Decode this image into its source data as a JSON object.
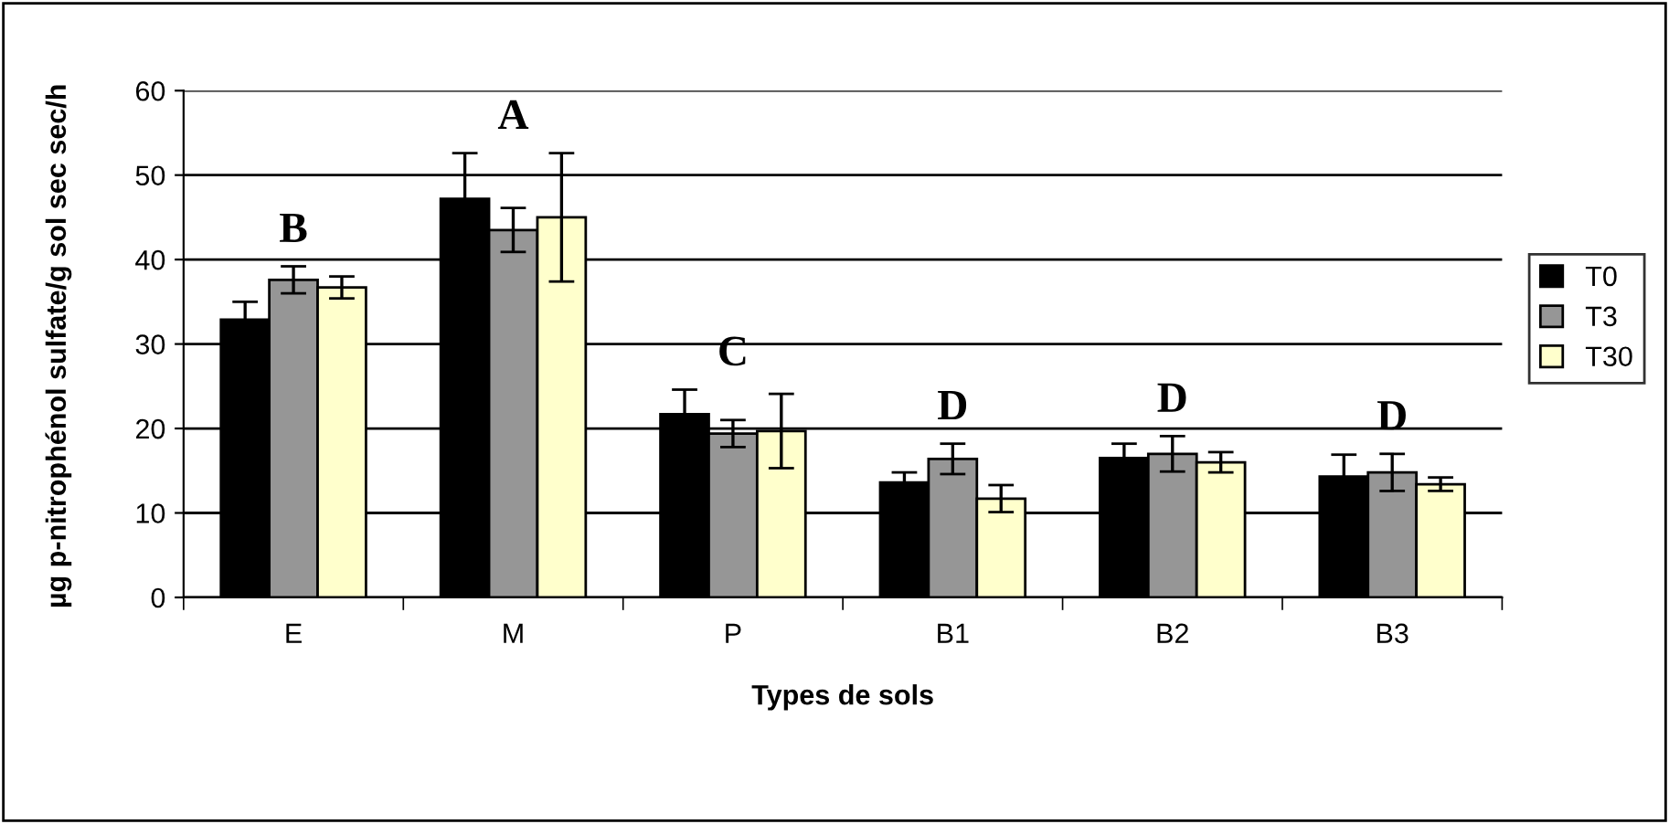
{
  "chart_data": {
    "type": "bar",
    "xlabel": "Types de sols",
    "ylabel": "µg p-nitrophénol sulfate/g sol sec sec/h",
    "categories": [
      "E",
      "M",
      "P",
      "B1",
      "B2",
      "B3"
    ],
    "series": [
      {
        "name": "T0",
        "color": "#000000",
        "values": [
          32.9,
          47.2,
          21.7,
          13.6,
          16.5,
          14.3
        ],
        "errors": [
          2.1,
          5.4,
          2.9,
          1.2,
          1.7,
          2.6
        ]
      },
      {
        "name": "T3",
        "color": "#969696",
        "values": [
          37.6,
          43.5,
          19.4,
          16.4,
          17.0,
          14.8
        ],
        "errors": [
          1.6,
          2.6,
          1.6,
          1.8,
          2.1,
          2.2
        ]
      },
      {
        "name": "T30",
        "color": "#ffffcc",
        "values": [
          36.7,
          45.0,
          19.7,
          11.7,
          16.0,
          13.4
        ],
        "errors": [
          1.3,
          7.6,
          4.4,
          1.6,
          1.2,
          0.8
        ]
      }
    ],
    "annotations": [
      "B",
      "A",
      "C",
      "D",
      "D",
      "D"
    ],
    "ylim": [
      0,
      60
    ],
    "yticks": [
      0,
      10,
      20,
      30,
      40,
      50,
      60
    ],
    "grid": "y",
    "legend": "right"
  }
}
